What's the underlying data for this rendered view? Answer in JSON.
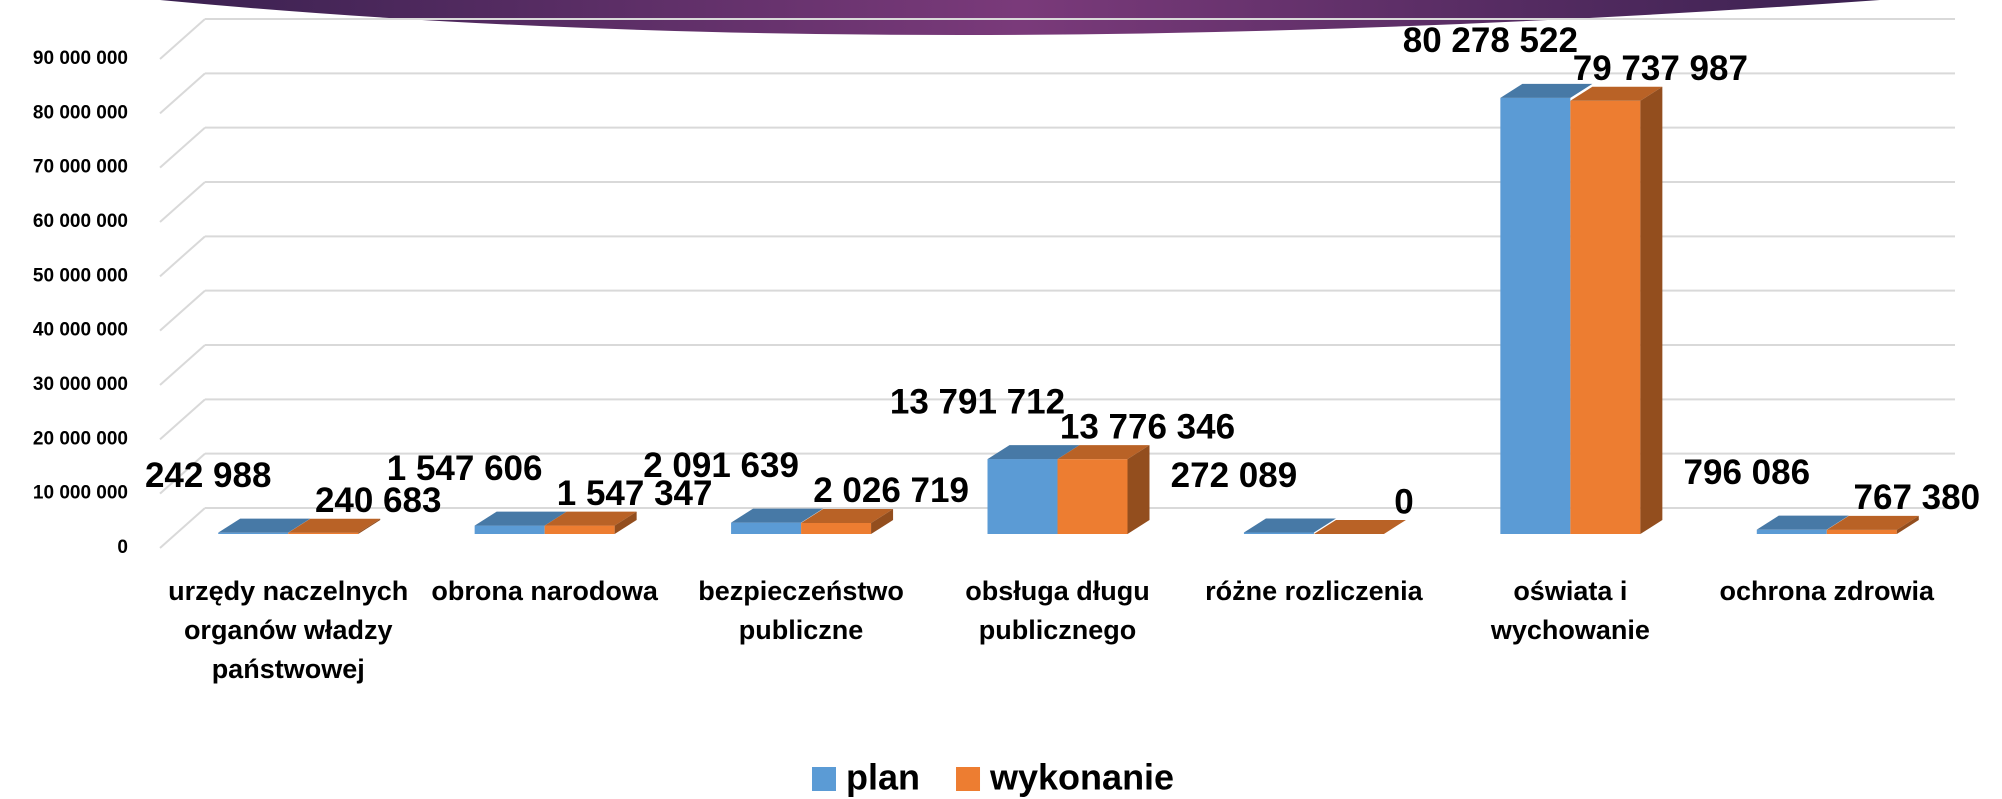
{
  "chart_data": {
    "type": "bar3d",
    "categories": [
      "urzędy naczelnych organów władzy państwowej",
      "obrona narodowa",
      "bezpieczeństwo publiczne",
      "obsługa długu publicznego",
      "różne rozliczenia",
      "oświata i wychowanie",
      "ochrona zdrowia"
    ],
    "series": [
      {
        "name": "plan",
        "color": "#5b9bd5",
        "values": [
          242988,
          1547606,
          2091639,
          13791712,
          272089,
          80278522,
          796086
        ],
        "value_labels": [
          "242 988",
          "1 547 606",
          "2 091 639",
          "13 791 712",
          "272 089",
          "80 278 522",
          "796 086"
        ]
      },
      {
        "name": "wykonanie",
        "color": "#ed7d31",
        "values": [
          240683,
          1547347,
          2026719,
          13776346,
          0,
          79737987,
          767380
        ],
        "value_labels": [
          "240 683",
          "1 547 347",
          "2 026 719",
          "13 776 346",
          "0",
          "79 737 987",
          "767 380"
        ]
      }
    ],
    "ylim": [
      0,
      90000000
    ],
    "yticks": [
      0,
      {
        "value": 10000000,
        "label": "10 000 000"
      },
      {
        "value": 20000000,
        "label": "20 000 000"
      },
      {
        "value": 30000000,
        "label": "30 000 000"
      },
      {
        "value": 40000000,
        "label": "40 000 000"
      },
      {
        "value": 50000000,
        "label": "50 000 000"
      },
      {
        "value": 60000000,
        "label": "60 000 000"
      },
      {
        "value": 70000000,
        "label": "70 000 000"
      },
      {
        "value": 80000000,
        "label": "80 000 000"
      },
      {
        "value": 90000000,
        "label": "90 000 000"
      }
    ],
    "grid": true,
    "legend": "bottom"
  }
}
